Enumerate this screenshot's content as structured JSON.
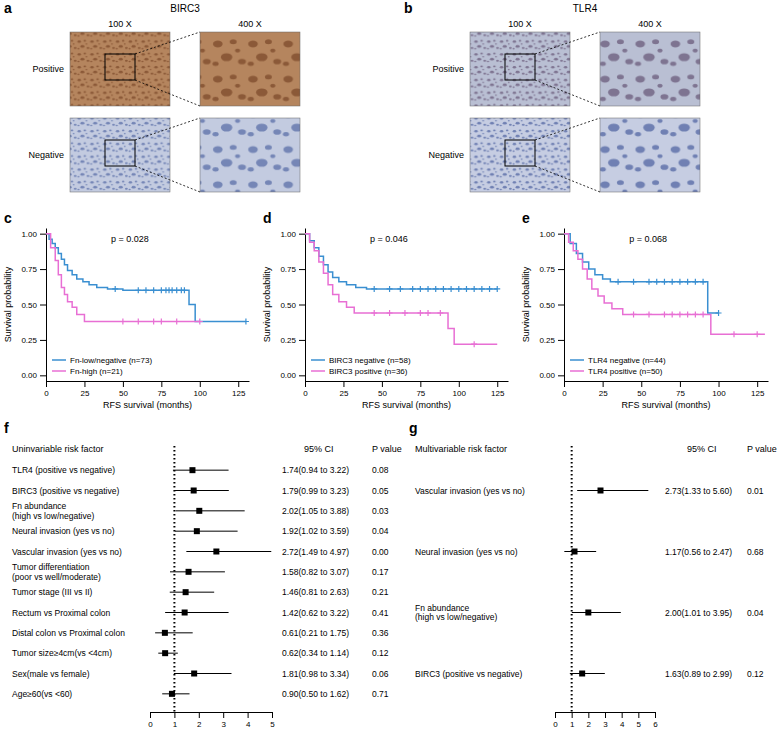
{
  "chart_data": [
    {
      "type": "image_grid",
      "panel": "a",
      "title": "BIRC3",
      "columns": [
        "100 X",
        "400 X"
      ],
      "rows": [
        "Positive",
        "Negative"
      ]
    },
    {
      "type": "image_grid",
      "panel": "b",
      "title": "TLR4",
      "columns": [
        "100 X",
        "400 X"
      ],
      "rows": [
        "Positive",
        "Negative"
      ]
    },
    {
      "type": "line",
      "panel": "c",
      "line_style": "step",
      "marker": "+",
      "legend": "lower left",
      "x_label": "RFS survival (months)",
      "y_label": "Survival probability",
      "annotations": [
        "p = 0.028"
      ],
      "xlim": [
        0,
        132
      ],
      "xticks": [
        0,
        25,
        50,
        75,
        100,
        125
      ],
      "ylim": [
        -0.04,
        1.04
      ],
      "yticks": [
        {
          "value": 0,
          "label": "0.00"
        },
        {
          "value": 0.25,
          "label": "0.25"
        },
        {
          "value": 0.5,
          "label": "0.50"
        },
        {
          "value": 0.75,
          "label": "0.75"
        },
        {
          "value": 1,
          "label": "1.00"
        }
      ],
      "series": [
        {
          "name": "Fn-low/negative (n=73)",
          "color": "#3a8fd1",
          "x": [
            0,
            2,
            4,
            6,
            8,
            10,
            12,
            14,
            17,
            20,
            24,
            28,
            33,
            40,
            50,
            93,
            97,
            130
          ],
          "values": [
            1,
            0.96,
            0.93,
            0.9,
            0.86,
            0.82,
            0.78,
            0.74,
            0.71,
            0.68,
            0.66,
            0.64,
            0.62,
            0.61,
            0.6,
            0.5,
            0.38,
            0.38
          ],
          "censored": [
            45,
            60,
            65,
            70,
            75,
            78,
            80,
            82,
            85,
            88,
            90,
            130
          ]
        },
        {
          "name": "Fn-high (n=21)",
          "color": "#e86fd4",
          "x": [
            0,
            3,
            6,
            8,
            10,
            12,
            14,
            17,
            20,
            25,
            100
          ],
          "values": [
            1,
            0.9,
            0.81,
            0.71,
            0.62,
            0.57,
            0.52,
            0.48,
            0.43,
            0.38,
            0.38
          ],
          "censored": [
            50,
            60,
            70,
            75,
            85,
            100
          ]
        }
      ]
    },
    {
      "type": "line",
      "panel": "d",
      "line_style": "step",
      "marker": "+",
      "legend": "lower left",
      "x_label": "RFS survival (months)",
      "y_label": "Survival probability",
      "annotations": [
        "p = 0.046"
      ],
      "xlim": [
        0,
        132
      ],
      "xticks": [
        0,
        25,
        50,
        75,
        100,
        125
      ],
      "ylim": [
        -0.04,
        1.04
      ],
      "yticks": [
        {
          "value": 0,
          "label": "0.00"
        },
        {
          "value": 0.25,
          "label": "0.25"
        },
        {
          "value": 0.5,
          "label": "0.50"
        },
        {
          "value": 0.75,
          "label": "0.75"
        },
        {
          "value": 1,
          "label": "1.00"
        }
      ],
      "series": [
        {
          "name": "BIRC3 negative (n=58)",
          "color": "#3a8fd1",
          "x": [
            0,
            3,
            6,
            9,
            12,
            15,
            18,
            22,
            27,
            33,
            40,
            125
          ],
          "values": [
            1,
            0.95,
            0.9,
            0.84,
            0.78,
            0.73,
            0.69,
            0.66,
            0.64,
            0.62,
            0.61,
            0.61
          ],
          "censored": [
            45,
            55,
            62,
            70,
            75,
            80,
            85,
            90,
            95,
            100,
            105,
            110,
            115,
            120,
            125
          ]
        },
        {
          "name": "BIRC3 positive (n=36)",
          "color": "#e86fd4",
          "x": [
            0,
            3,
            6,
            9,
            12,
            15,
            18,
            22,
            27,
            32,
            93,
            97,
            125
          ],
          "values": [
            1,
            0.94,
            0.88,
            0.8,
            0.72,
            0.64,
            0.57,
            0.52,
            0.48,
            0.44,
            0.33,
            0.22,
            0.22
          ],
          "censored": [
            45,
            55,
            65,
            75,
            80,
            88,
            110
          ]
        }
      ]
    },
    {
      "type": "line",
      "panel": "e",
      "line_style": "step",
      "marker": "+",
      "legend": "lower left",
      "x_label": "RFS survival (months)",
      "y_label": "Survival probability",
      "annotations": [
        "p = 0.068"
      ],
      "xlim": [
        0,
        132
      ],
      "xticks": [
        0,
        25,
        50,
        75,
        100,
        125
      ],
      "ylim": [
        -0.04,
        1.04
      ],
      "yticks": [
        {
          "value": 0,
          "label": "0.00"
        },
        {
          "value": 0.25,
          "label": "0.25"
        },
        {
          "value": 0.5,
          "label": "0.50"
        },
        {
          "value": 0.75,
          "label": "0.75"
        },
        {
          "value": 1,
          "label": "1.00"
        }
      ],
      "series": [
        {
          "name": "TLR4 negative (n=44)",
          "color": "#3a8fd1",
          "x": [
            0,
            4,
            8,
            12,
            16,
            20,
            25,
            30,
            93,
            100
          ],
          "values": [
            1,
            0.93,
            0.86,
            0.8,
            0.75,
            0.71,
            0.68,
            0.66,
            0.44,
            0.44
          ],
          "censored": [
            35,
            45,
            55,
            60,
            65,
            70,
            75,
            80,
            85,
            90,
            100
          ]
        },
        {
          "name": "TLR4 positive (n=50)",
          "color": "#e86fd4",
          "x": [
            0,
            3,
            6,
            9,
            12,
            15,
            18,
            22,
            26,
            31,
            38,
            95,
            130
          ],
          "values": [
            1,
            0.94,
            0.88,
            0.82,
            0.75,
            0.68,
            0.61,
            0.56,
            0.51,
            0.47,
            0.43,
            0.29,
            0.29
          ],
          "censored": [
            45,
            55,
            65,
            70,
            75,
            80,
            85,
            90,
            110,
            125
          ]
        }
      ]
    },
    {
      "type": "forest",
      "panel": "f",
      "orientation": "horizontal",
      "marker": "square",
      "title": "Uninvariable risk factor",
      "columns": [
        "95% CI",
        "P value"
      ],
      "categories": [
        "TLR4 (positive vs negative)",
        "BIRC3 (positive vs negative)",
        "Fn abundance\n(high vs low/negative)",
        "Neural invasion (yes vs no)",
        "Vascular invasion (yes vs no)",
        "Tumor differentiation\n(poor vs well/moderate)",
        "Tumor stage (III vs II)",
        "Rectum vs Proximal colon",
        "Distal colon vs Proximal colon",
        "Tumor size≥4cm(vs <4cm)",
        "Sex(male vs female)",
        "Age≥60(vs <60)"
      ],
      "values": [
        1.74,
        1.79,
        2.02,
        1.92,
        2.72,
        1.58,
        1.46,
        1.42,
        0.61,
        0.62,
        1.81,
        0.9
      ],
      "error_low": [
        0.94,
        0.99,
        1.05,
        1.02,
        1.49,
        0.82,
        0.81,
        0.62,
        0.21,
        0.34,
        0.98,
        0.5
      ],
      "error_high": [
        3.22,
        3.23,
        3.88,
        3.59,
        4.97,
        3.07,
        2.63,
        3.22,
        1.75,
        1.14,
        3.34,
        1.62
      ],
      "value_labels": [
        "1.74(0.94 to 3.22)",
        "1.79(0.99 to 3.23)",
        "2.02(1.05 to 3.88)",
        "1.92(1.02 to 3.59)",
        "2.72(1.49 to 4.97)",
        "1.58(0.82 to 3.07)",
        "1.46(0.81 to 2.63)",
        "1.42(0.62 to 3.22)",
        "0.61(0.21 to 1.75)",
        "0.62(0.34 to 1.14)",
        "1.81(0.98 to 3.34)",
        "0.90(0.50 to 1.62)"
      ],
      "p_values": [
        "0.08",
        "0.05",
        "0.03",
        "0.04",
        "0.00",
        "0.17",
        "0.21",
        "0.41",
        "0.36",
        "0.12",
        "0.06",
        "0.71"
      ],
      "reference_line": 1,
      "xlim": [
        0,
        5
      ],
      "xticks": [
        0,
        1,
        2,
        3,
        4,
        5
      ]
    },
    {
      "type": "forest",
      "panel": "g",
      "orientation": "horizontal",
      "marker": "square",
      "title": "Multivariable risk factor",
      "columns": [
        "95% CI",
        "P value"
      ],
      "categories": [
        "Vascular invasion (yes vs no)",
        "Neural invasion (yes vs no)",
        "Fn abundance\n(high vs low/negative)",
        "BIRC3 (positive vs negative)"
      ],
      "values": [
        2.73,
        1.17,
        2.0,
        1.63
      ],
      "error_low": [
        1.33,
        0.56,
        1.01,
        0.89
      ],
      "error_high": [
        5.6,
        2.47,
        3.95,
        2.99
      ],
      "value_labels": [
        "2.73(1.33 to 5.60)",
        "1.17(0.56 to 2.47)",
        "2.00(1.01 to 3.95)",
        "1.63(0.89 to 2.99)"
      ],
      "p_values": [
        "0.01",
        "0.68",
        "0.04",
        "0.12"
      ],
      "reference_line": 1,
      "xlim": [
        0,
        6
      ],
      "xticks": [
        0,
        1,
        2,
        3,
        4,
        5,
        6
      ]
    }
  ]
}
